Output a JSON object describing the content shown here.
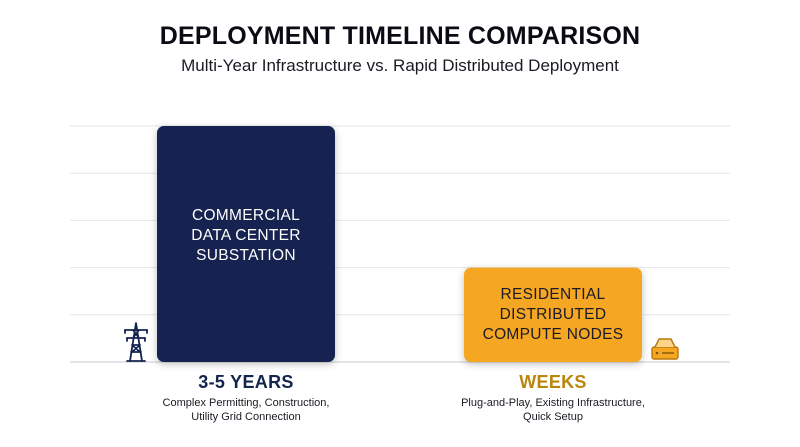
{
  "title": "DEPLOYMENT TIMELINE COMPARISON",
  "subtitle": "Multi-Year Infrastructure vs. Rapid Distributed Deployment",
  "colors": {
    "commercial": "#13244f",
    "residential": "#f5a623",
    "commercial_text": "#13244f",
    "residential_text": "#b8860b",
    "grid": "#e6e6ea"
  },
  "chart_data": {
    "type": "bar",
    "title": "DEPLOYMENT TIMELINE COMPARISON",
    "subtitle": "Multi-Year Infrastructure vs. Rapid Distributed Deployment",
    "categories": [
      "COMMERCIAL DATA CENTER SUBSTATION",
      "RESIDENTIAL DISTRIBUTED COMPUTE NODES"
    ],
    "value_labels": [
      "3-5 YEARS",
      "WEEKS"
    ],
    "values": [
      5,
      2
    ],
    "ylim": [
      0,
      5
    ],
    "grid": true,
    "gridlines": 5,
    "descriptions": [
      "Complex Permitting, Construction, Utility Grid Connection",
      "Plug-and-Play, Existing Infrastructure, Quick Setup"
    ],
    "icons": [
      "transmission-tower-icon",
      "server-node-icon"
    ]
  },
  "bars": [
    {
      "label_lines": [
        "COMMERCIAL",
        "DATA CENTER",
        "SUBSTATION"
      ],
      "value_label": "3-5 YEARS",
      "desc_lines": [
        "Complex Permitting, Construction,",
        "Utility Grid Connection"
      ]
    },
    {
      "label_lines": [
        "RESIDENTIAL",
        "DISTRIBUTED",
        "COMPUTE NODES"
      ],
      "value_label": "WEEKS",
      "desc_lines": [
        "Plug-and-Play, Existing Infrastructure,",
        "Quick Setup"
      ]
    }
  ]
}
